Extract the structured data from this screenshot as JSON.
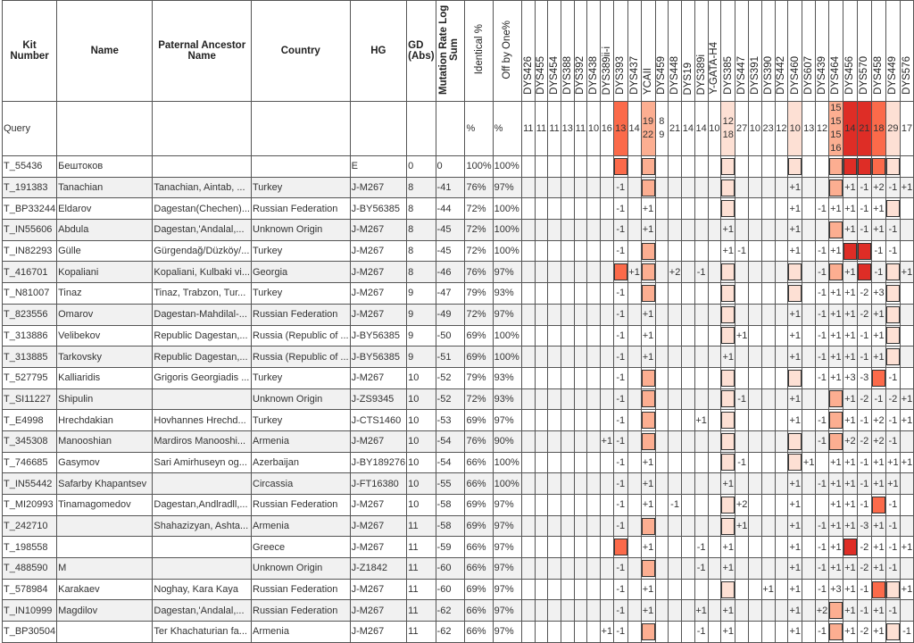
{
  "colors": {
    "b1": "#fde0d4",
    "b2": "#fcae91",
    "b3": "#fb6a4a",
    "b4": "#de2d26"
  },
  "headers": {
    "kit": "Kit Number",
    "name": "Name",
    "ancestor": "Paternal Ancestor Name",
    "country": "Country",
    "hg": "HG",
    "gd": "GD (Abs)",
    "mut": "Mutation Rate Log Sum",
    "ident": "Identical %",
    "off": "Off by One%"
  },
  "markers": [
    "DYS426",
    "DYS455",
    "DYS454",
    "DYS388",
    "DYS392",
    "DYS438",
    "DYS389ii-i",
    "DYS393",
    "DYS437",
    "YCAII",
    "DYS459",
    "DYS448",
    "DYS19",
    "DYS389i",
    "Y-GATA-H4",
    "DYS385",
    "DYS447",
    "DYS391",
    "DYS390",
    "DYS442",
    "DYS460",
    "DYS607",
    "DYS439",
    "DYS464",
    "DYS456",
    "DYS570",
    "DYS458",
    "DYS449",
    "DYS576"
  ],
  "query": {
    "kit": "Query",
    "ident": "%",
    "off": "%",
    "values": [
      "11",
      "11",
      "11",
      "13",
      "11",
      "10",
      "16",
      "13",
      "14",
      "19\n22",
      "8\n9",
      "21",
      "14",
      "14",
      "10",
      "12\n18",
      "27",
      "10",
      "23",
      "12",
      "10",
      "13",
      "12",
      "15\n15\n15\n16",
      "14",
      "21",
      "18",
      "29",
      "17"
    ],
    "levels": [
      "",
      "",
      "",
      "",
      "",
      "",
      "",
      "b3",
      "",
      "b2",
      "",
      "",
      "",
      "",
      "",
      "b1",
      "",
      "",
      "",
      "",
      "b1",
      "",
      "",
      "b2",
      "b4",
      "b4",
      "b3",
      "b1",
      ""
    ]
  },
  "rows": [
    {
      "kit": "T_55436",
      "name": "Бештоков",
      "ancestor": "",
      "country": "",
      "hg": "E",
      "gd": "0",
      "mut": "0",
      "ident": "100%",
      "off": "100%",
      "cells": {
        "7": "b3",
        "9": "b2",
        "15": "b1",
        "20": "b1",
        "23": "b2",
        "24": "b4",
        "25": "b4",
        "26": "b3",
        "27": "b1"
      }
    },
    {
      "kit": "T_191383",
      "name": "Tanachian",
      "ancestor": "Tanachian, Aintab, ...",
      "country": "Turkey",
      "hg": "J-M267",
      "gd": "8",
      "mut": "-41",
      "ident": "76%",
      "off": "97%",
      "cells": {
        "7": "-1",
        "9": "b2",
        "15": "b1",
        "20": "+1",
        "23": "b2",
        "24": "+1",
        "25": "-1",
        "26": "+2",
        "27": "-1",
        "28": "+1"
      }
    },
    {
      "kit": "T_BP33244",
      "name": "Eldarov",
      "ancestor": "Dagestan(Chechen)...",
      "country": "Russian Federation",
      "hg": "J-BY56385",
      "gd": "8",
      "mut": "-44",
      "ident": "72%",
      "off": "100%",
      "cells": {
        "7": "-1",
        "9": "+1",
        "15": "b1",
        "20": "+1",
        "22": "-1",
        "23": "+1",
        "24": "+1",
        "25": "-1",
        "26": "+1",
        "27": "b1"
      }
    },
    {
      "kit": "T_IN55606",
      "name": "Abdula",
      "ancestor": "Dagestan,'Andalal,...",
      "country": "Unknown Origin",
      "hg": "J-M267",
      "gd": "8",
      "mut": "-45",
      "ident": "72%",
      "off": "100%",
      "cells": {
        "7": "-1",
        "9": "+1",
        "15": "+1",
        "20": "+1",
        "23": "b2",
        "24": "+1",
        "25": "-1",
        "26": "+1",
        "27": "-1"
      }
    },
    {
      "kit": "T_IN82293",
      "name": "Gülle",
      "ancestor": "Gürgendağ/Düzköy/...",
      "country": "Turkey",
      "hg": "J-M267",
      "gd": "8",
      "mut": "-45",
      "ident": "72%",
      "off": "100%",
      "cells": {
        "7": "-1",
        "9": "b2",
        "15": "+1",
        "16": "-1",
        "20": "+1",
        "22": "-1",
        "23": "+1",
        "24": "b4",
        "25": "b4",
        "26": "-1",
        "27": "-1"
      }
    },
    {
      "kit": "T_416701",
      "name": "Kopaliani",
      "ancestor": "Kopaliani, Kulbaki vi...",
      "country": "Georgia",
      "hg": "J-M267",
      "gd": "8",
      "mut": "-46",
      "ident": "76%",
      "off": "97%",
      "cells": {
        "7": "b3",
        "8": "+1",
        "9": "b2",
        "11": "+2",
        "13": "-1",
        "15": "b1",
        "20": "b1",
        "22": "-1",
        "23": "b2",
        "24": "+1",
        "25": "b4",
        "26": "-1",
        "27": "b1",
        "28": "+1"
      }
    },
    {
      "kit": "T_N81007",
      "name": "Tinaz",
      "ancestor": "Tinaz, Trabzon, Tur...",
      "country": "Turkey",
      "hg": "J-M267",
      "gd": "9",
      "mut": "-47",
      "ident": "79%",
      "off": "93%",
      "cells": {
        "7": "-1",
        "9": "b2",
        "15": "b1",
        "20": "b1",
        "22": "-1",
        "23": "+1",
        "24": "+1",
        "25": "-2",
        "26": "+3",
        "27": "b1"
      }
    },
    {
      "kit": "T_823556",
      "name": "Omarov",
      "ancestor": "Dagestan-Mahdilal-...",
      "country": "Russian Federation",
      "hg": "J-M267",
      "gd": "9",
      "mut": "-49",
      "ident": "72%",
      "off": "97%",
      "cells": {
        "7": "-1",
        "9": "+1",
        "15": "b1",
        "20": "+1",
        "22": "-1",
        "23": "+1",
        "24": "+1",
        "25": "-2",
        "26": "+1",
        "27": "b1"
      }
    },
    {
      "kit": "T_313886",
      "name": "Velibekov",
      "ancestor": "Republic Dagestan,...",
      "country": "Russia (Republic of ...",
      "hg": "J-BY56385",
      "gd": "9",
      "mut": "-50",
      "ident": "69%",
      "off": "100%",
      "cells": {
        "7": "-1",
        "9": "+1",
        "15": "b1",
        "16": "+1",
        "20": "+1",
        "22": "-1",
        "23": "+1",
        "24": "+1",
        "25": "-1",
        "26": "+1",
        "27": "b1"
      }
    },
    {
      "kit": "T_313885",
      "name": "Tarkovsky",
      "ancestor": "Republic Dagestan,...",
      "country": "Russia (Republic of ...",
      "hg": "J-BY56385",
      "gd": "9",
      "mut": "-51",
      "ident": "69%",
      "off": "100%",
      "cells": {
        "7": "-1",
        "9": "+1",
        "15": "+1",
        "20": "+1",
        "22": "-1",
        "23": "+1",
        "24": "+1",
        "25": "-1",
        "26": "+1",
        "27": "b1"
      }
    },
    {
      "kit": "T_527795",
      "name": "Kalliaridis",
      "ancestor": "Grigoris Georgiadis ...",
      "country": "Turkey",
      "hg": "J-M267",
      "gd": "10",
      "mut": "-52",
      "ident": "79%",
      "off": "93%",
      "cells": {
        "7": "-1",
        "9": "b2",
        "15": "b1",
        "20": "b1",
        "22": "-1",
        "23": "+1",
        "24": "+3",
        "25": "-3",
        "26": "b3",
        "27": "-1"
      }
    },
    {
      "kit": "T_SI11227",
      "name": "Shipulin",
      "ancestor": "",
      "country": "Unknown Origin",
      "hg": "J-ZS9345",
      "gd": "10",
      "mut": "-52",
      "ident": "72%",
      "off": "93%",
      "cells": {
        "7": "-1",
        "9": "b2",
        "15": "b1",
        "16": "-1",
        "20": "+1",
        "23": "b2",
        "24": "+1",
        "25": "-2",
        "26": "-1",
        "27": "-2",
        "28": "+1"
      }
    },
    {
      "kit": "T_E4998",
      "name": "Hrechdakian",
      "ancestor": "Hovhannes Hrechd...",
      "country": "Turkey",
      "hg": "J-CTS1460",
      "gd": "10",
      "mut": "-53",
      "ident": "69%",
      "off": "97%",
      "cells": {
        "7": "-1",
        "9": "b2",
        "13": "+1",
        "15": "b1",
        "20": "+1",
        "22": "-1",
        "23": "b2",
        "24": "+1",
        "25": "-1",
        "26": "+2",
        "27": "-1",
        "28": "+1"
      }
    },
    {
      "kit": "T_345308",
      "name": "Manooshian",
      "ancestor": "Mardiros Manooshi...",
      "country": "Armenia",
      "hg": "J-M267",
      "gd": "10",
      "mut": "-54",
      "ident": "76%",
      "off": "90%",
      "cells": {
        "6": "+1",
        "7": "-1",
        "9": "b2",
        "15": "b1",
        "20": "b1",
        "22": "-1",
        "23": "b2",
        "24": "+2",
        "25": "-2",
        "26": "+2",
        "27": "-1"
      }
    },
    {
      "kit": "T_746685",
      "name": "Gasymov",
      "ancestor": "Sari Amirhuseyn og...",
      "country": "Azerbaijan",
      "hg": "J-BY189276",
      "gd": "10",
      "mut": "-54",
      "ident": "66%",
      "off": "100%",
      "cells": {
        "7": "-1",
        "9": "+1",
        "15": "b1",
        "16": "-1",
        "20": "b1",
        "21": "+1",
        "23": "+1",
        "24": "+1",
        "25": "-1",
        "26": "+1",
        "27": "+1",
        "28": "+1"
      }
    },
    {
      "kit": "T_IN55442",
      "name": "Safarby Khapantsev",
      "ancestor": "",
      "country": "Circassia",
      "hg": "J-FT16380",
      "gd": "10",
      "mut": "-55",
      "ident": "66%",
      "off": "100%",
      "cells": {
        "7": "-1",
        "9": "+1",
        "15": "+1",
        "20": "+1",
        "22": "-1",
        "23": "+1",
        "24": "+1",
        "25": "-1",
        "26": "+1",
        "27": "+1"
      }
    },
    {
      "kit": "T_MI20993",
      "name": "Tinamagomedov",
      "ancestor": "Dagestan,Andlradll,...",
      "country": "Russian Federation",
      "hg": "J-M267",
      "gd": "10",
      "mut": "-58",
      "ident": "69%",
      "off": "97%",
      "cells": {
        "7": "-1",
        "9": "+1",
        "11": "-1",
        "15": "b1",
        "16": "+2",
        "20": "+1",
        "23": "+1",
        "24": "+1",
        "25": "-1",
        "26": "b3",
        "27": "-1"
      }
    },
    {
      "kit": "T_242710",
      "name": "",
      "ancestor": "Shahazizyan, Ashta...",
      "country": "Armenia",
      "hg": "J-M267",
      "gd": "11",
      "mut": "-58",
      "ident": "69%",
      "off": "97%",
      "cells": {
        "7": "-1",
        "9": "b2",
        "15": "b1",
        "16": "+1",
        "20": "+1",
        "22": "-1",
        "23": "+1",
        "24": "+1",
        "25": "-3",
        "26": "+1",
        "27": "-1"
      }
    },
    {
      "kit": "T_198558",
      "name": "",
      "ancestor": "",
      "country": "Greece",
      "hg": "J-M267",
      "gd": "11",
      "mut": "-59",
      "ident": "66%",
      "off": "97%",
      "cells": {
        "7": "b3",
        "9": "+1",
        "13": "-1",
        "15": "+1",
        "20": "+1",
        "22": "-1",
        "23": "+1",
        "24": "b4",
        "25": "-2",
        "26": "+1",
        "27": "-1",
        "28": "+1"
      }
    },
    {
      "kit": "T_488590",
      "name": "M",
      "ancestor": "",
      "country": "Unknown Origin",
      "hg": "J-Z1842",
      "gd": "11",
      "mut": "-60",
      "ident": "66%",
      "off": "97%",
      "cells": {
        "7": "-1",
        "9": "b2",
        "13": "-1",
        "15": "+1",
        "20": "+1",
        "22": "-1",
        "23": "+1",
        "24": "+1",
        "25": "-2",
        "26": "+1",
        "27": "-1"
      }
    },
    {
      "kit": "T_578984",
      "name": "Karakaev",
      "ancestor": "Noghay, Kara Kaya",
      "country": "Russian Federation",
      "hg": "J-M267",
      "gd": "11",
      "mut": "-60",
      "ident": "69%",
      "off": "97%",
      "cells": {
        "7": "-1",
        "9": "+1",
        "15": "b1",
        "18": "+1",
        "20": "+1",
        "22": "-1",
        "23": "+3",
        "24": "+1",
        "25": "-1",
        "26": "b3",
        "27": "b1",
        "28": "+1"
      }
    },
    {
      "kit": "T_IN10999",
      "name": "Magdilov",
      "ancestor": "Dagestan,'Andalal,...",
      "country": "Russian Federation",
      "hg": "J-M267",
      "gd": "11",
      "mut": "-62",
      "ident": "66%",
      "off": "97%",
      "cells": {
        "7": "-1",
        "9": "+1",
        "13": "+1",
        "15": "+1",
        "20": "+1",
        "22": "+2",
        "23": "b2",
        "24": "+1",
        "25": "-1",
        "26": "+1",
        "27": "-1"
      }
    },
    {
      "kit": "T_BP30504",
      "name": "",
      "ancestor": "Ter Khachaturian fa...",
      "country": "Armenia",
      "hg": "J-M267",
      "gd": "11",
      "mut": "-62",
      "ident": "66%",
      "off": "97%",
      "cells": {
        "6": "+1",
        "7": "-1",
        "9": "b2",
        "13": "-1",
        "15": "+1",
        "20": "+1",
        "22": "-1",
        "23": "b2",
        "24": "+1",
        "25": "-2",
        "26": "+1",
        "27": "b1",
        "28": "-1"
      }
    }
  ]
}
